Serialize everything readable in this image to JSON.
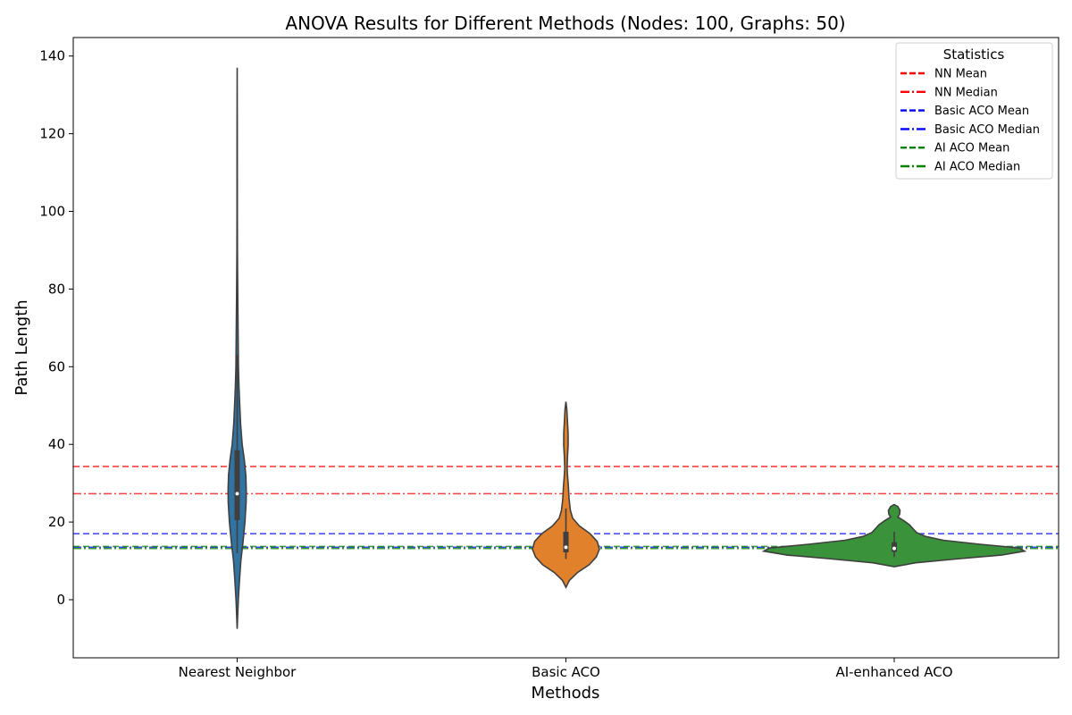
{
  "chart_data": {
    "type": "violin",
    "title": "ANOVA Results for Different Methods (Nodes: 100, Graphs: 50)",
    "xlabel": "Methods",
    "ylabel": "Path Length",
    "ylim": [
      -15,
      145
    ],
    "yticks": [
      0,
      20,
      40,
      60,
      80,
      100,
      120,
      140
    ],
    "grid": false,
    "categories": [
      "Nearest Neighbor",
      "Basic ACO",
      "AI-enhanced ACO"
    ],
    "violins": [
      {
        "category": "Nearest Neighbor",
        "color": "#3274a1",
        "q1": 20.5,
        "median": 27.3,
        "q3": 38.5,
        "whisker_low": 12,
        "whisker_high": 63,
        "profile": [
          [
            -7.5,
            0.0
          ],
          [
            -4,
            0.6
          ],
          [
            0,
            1.3
          ],
          [
            5,
            2.6
          ],
          [
            10,
            4.1
          ],
          [
            15,
            6.6
          ],
          [
            20,
            8.7
          ],
          [
            25,
            10.0
          ],
          [
            28,
            10.2
          ],
          [
            32,
            9.7
          ],
          [
            36,
            8.0
          ],
          [
            40,
            5.6
          ],
          [
            45,
            3.9
          ],
          [
            50,
            2.9
          ],
          [
            55,
            2.0
          ],
          [
            60,
            1.4
          ],
          [
            70,
            1.0
          ],
          [
            80,
            0.6
          ],
          [
            90,
            0.3
          ],
          [
            100,
            0.2
          ],
          [
            120,
            0.15
          ],
          [
            137,
            0.0
          ]
        ]
      },
      {
        "category": "Basic ACO",
        "color": "#e1812c",
        "q1": 12.2,
        "median": 13.5,
        "q3": 17.5,
        "whisker_low": 10.5,
        "whisker_high": 23.5,
        "profile": [
          [
            3.2,
            0.0
          ],
          [
            5,
            4.0
          ],
          [
            7,
            13.0
          ],
          [
            9,
            26.0
          ],
          [
            11,
            34.0
          ],
          [
            13,
            37.5
          ],
          [
            15,
            35.0
          ],
          [
            17,
            27.0
          ],
          [
            19,
            15.0
          ],
          [
            21,
            7.5
          ],
          [
            23,
            5.0
          ],
          [
            26,
            3.5
          ],
          [
            29,
            2.8
          ],
          [
            32,
            1.8
          ],
          [
            34,
            1.3
          ],
          [
            37,
            1.8
          ],
          [
            40,
            2.5
          ],
          [
            43,
            2.4
          ],
          [
            46,
            1.7
          ],
          [
            49,
            1.0
          ],
          [
            51,
            0.0
          ]
        ]
      },
      {
        "category": "AI-enhanced ACO",
        "color": "#3a923a",
        "q1": 12.3,
        "median": 13.2,
        "q3": 14.8,
        "whisker_low": 11.0,
        "whisker_high": 17.5,
        "profile": [
          [
            8.5,
            0.0
          ],
          [
            9.5,
            24.0
          ],
          [
            10.5,
            70.0
          ],
          [
            11.5,
            120.0
          ],
          [
            12.5,
            146.0
          ],
          [
            13.3,
            140.0
          ],
          [
            14.3,
            95.0
          ],
          [
            15.3,
            55.0
          ],
          [
            16.3,
            35.0
          ],
          [
            17.3,
            25.0
          ],
          [
            18.3,
            21.0
          ],
          [
            19.3,
            17.0
          ],
          [
            20.3,
            11.0
          ],
          [
            21.3,
            4.0
          ],
          [
            22.0,
            6.0
          ],
          [
            23.0,
            6.5
          ],
          [
            24.0,
            4.0
          ],
          [
            24.5,
            0.0
          ]
        ]
      }
    ],
    "reference_lines": [
      {
        "label": "NN Mean",
        "value": 34.3,
        "color": "#ff0000",
        "style": "dashed"
      },
      {
        "label": "NN Median",
        "value": 27.3,
        "color": "#ff0000",
        "style": "dashdot"
      },
      {
        "label": "Basic ACO Mean",
        "value": 17.0,
        "color": "#0000ff",
        "style": "dashed"
      },
      {
        "label": "Basic ACO Median",
        "value": 13.5,
        "color": "#0000ff",
        "style": "dashdot"
      },
      {
        "label": "AI ACO Mean",
        "value": 13.7,
        "color": "#008000",
        "style": "dashed"
      },
      {
        "label": "AI ACO Median",
        "value": 13.2,
        "color": "#008000",
        "style": "dashdot"
      }
    ],
    "legend": {
      "title": "Statistics",
      "position": "top-right"
    }
  }
}
